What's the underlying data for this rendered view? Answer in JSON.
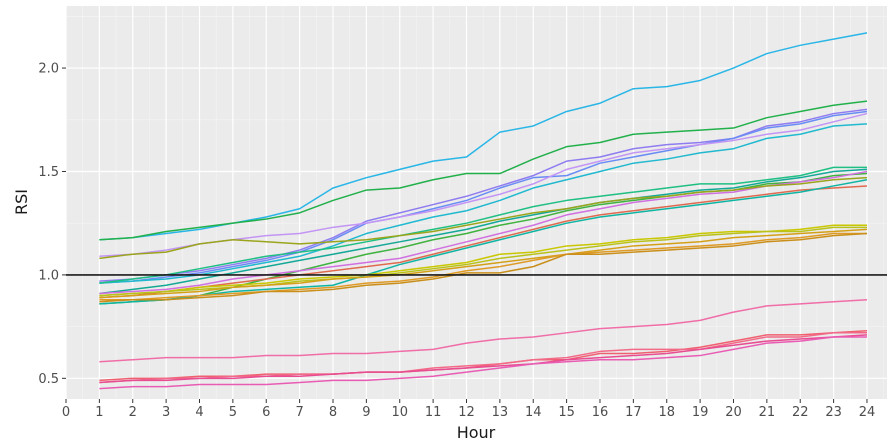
{
  "chart_data": {
    "type": "line",
    "xlabel": "Hour",
    "ylabel": "RSI",
    "xlim": [
      0,
      24.6
    ],
    "ylim": [
      0.4,
      2.3
    ],
    "x_ticks": [
      0,
      1,
      2,
      3,
      4,
      5,
      6,
      7,
      8,
      9,
      10,
      11,
      12,
      13,
      14,
      15,
      16,
      17,
      18,
      19,
      20,
      21,
      22,
      23,
      24
    ],
    "y_ticks": [
      0.5,
      1.0,
      1.5,
      2.0
    ],
    "y_tick_labels": [
      "0.5",
      "1.0",
      "1.5",
      "2.0"
    ],
    "grid": true,
    "legend": "none",
    "reference_line": {
      "y": 1.0,
      "color": "#1a1a1a"
    },
    "x": [
      1,
      2,
      3,
      4,
      5,
      6,
      7,
      8,
      9,
      10,
      11,
      12,
      13,
      14,
      15,
      16,
      17,
      18,
      19,
      20,
      21,
      22,
      23,
      24
    ],
    "series": [
      {
        "color": "#29b6e6",
        "values": [
          1.17,
          1.18,
          1.2,
          1.22,
          1.25,
          1.28,
          1.32,
          1.42,
          1.47,
          1.51,
          1.55,
          1.57,
          1.69,
          1.72,
          1.79,
          1.83,
          1.9,
          1.91,
          1.94,
          2.0,
          2.07,
          2.11,
          2.14,
          2.17
        ]
      },
      {
        "color": "#22b04b",
        "values": [
          1.17,
          1.18,
          1.21,
          1.23,
          1.25,
          1.27,
          1.3,
          1.36,
          1.41,
          1.42,
          1.46,
          1.49,
          1.49,
          1.56,
          1.62,
          1.64,
          1.68,
          1.69,
          1.7,
          1.71,
          1.76,
          1.79,
          1.82,
          1.84
        ]
      },
      {
        "color": "#8e7cf0",
        "values": [
          0.97,
          0.98,
          1.0,
          1.02,
          1.05,
          1.08,
          1.12,
          1.18,
          1.26,
          1.3,
          1.34,
          1.38,
          1.43,
          1.48,
          1.55,
          1.57,
          1.61,
          1.63,
          1.64,
          1.66,
          1.72,
          1.74,
          1.78,
          1.8
        ]
      },
      {
        "color": "#6a8cf5",
        "values": [
          0.96,
          0.97,
          0.99,
          1.01,
          1.04,
          1.07,
          1.11,
          1.17,
          1.25,
          1.28,
          1.32,
          1.36,
          1.42,
          1.47,
          1.48,
          1.54,
          1.57,
          1.6,
          1.63,
          1.66,
          1.71,
          1.73,
          1.77,
          1.79
        ]
      },
      {
        "color": "#20b9cf",
        "values": [
          0.96,
          0.97,
          0.98,
          1.0,
          1.03,
          1.06,
          1.09,
          1.14,
          1.2,
          1.24,
          1.28,
          1.31,
          1.36,
          1.42,
          1.46,
          1.5,
          1.54,
          1.56,
          1.59,
          1.61,
          1.66,
          1.68,
          1.72,
          1.73
        ]
      },
      {
        "color": "#c395f5",
        "values": [
          1.09,
          1.1,
          1.12,
          1.15,
          1.17,
          1.19,
          1.2,
          1.23,
          1.25,
          1.28,
          1.31,
          1.35,
          1.39,
          1.44,
          1.51,
          1.55,
          1.59,
          1.61,
          1.63,
          1.65,
          1.68,
          1.7,
          1.74,
          1.78
        ]
      },
      {
        "color": "#1fbf83",
        "values": [
          0.96,
          0.98,
          1.0,
          1.03,
          1.06,
          1.09,
          1.11,
          1.13,
          1.16,
          1.19,
          1.22,
          1.25,
          1.29,
          1.33,
          1.36,
          1.38,
          1.4,
          1.42,
          1.44,
          1.44,
          1.46,
          1.48,
          1.52,
          1.52
        ]
      },
      {
        "color": "#14a896",
        "values": [
          0.91,
          0.93,
          0.95,
          0.98,
          1.01,
          1.04,
          1.07,
          1.1,
          1.13,
          1.16,
          1.19,
          1.22,
          1.26,
          1.29,
          1.32,
          1.35,
          1.37,
          1.39,
          1.41,
          1.42,
          1.45,
          1.47,
          1.5,
          1.51
        ]
      },
      {
        "color": "#3fb23f",
        "values": [
          0.86,
          0.87,
          0.88,
          0.9,
          0.94,
          0.98,
          1.02,
          1.06,
          1.1,
          1.13,
          1.17,
          1.2,
          1.24,
          1.27,
          1.31,
          1.34,
          1.36,
          1.38,
          1.4,
          1.41,
          1.44,
          1.45,
          1.48,
          1.49
        ]
      },
      {
        "color": "#d170e0",
        "values": [
          0.91,
          0.92,
          0.93,
          0.95,
          0.98,
          1.0,
          1.02,
          1.04,
          1.06,
          1.08,
          1.12,
          1.16,
          1.2,
          1.24,
          1.29,
          1.32,
          1.35,
          1.37,
          1.39,
          1.4,
          1.43,
          1.45,
          1.47,
          1.5
        ]
      },
      {
        "color": "#9aa51c",
        "values": [
          1.08,
          1.1,
          1.11,
          1.15,
          1.17,
          1.16,
          1.15,
          1.16,
          1.17,
          1.19,
          1.21,
          1.24,
          1.27,
          1.3,
          1.32,
          1.35,
          1.37,
          1.38,
          1.4,
          1.41,
          1.43,
          1.44,
          1.46,
          1.47
        ]
      },
      {
        "color": "#e06a4f",
        "values": [
          0.89,
          0.9,
          0.92,
          0.94,
          0.96,
          0.98,
          1.0,
          1.02,
          1.04,
          1.06,
          1.1,
          1.14,
          1.18,
          1.22,
          1.26,
          1.29,
          1.31,
          1.33,
          1.35,
          1.37,
          1.39,
          1.41,
          1.42,
          1.43
        ]
      },
      {
        "color": "#0fb5a4",
        "values": [
          0.86,
          0.87,
          0.88,
          0.9,
          0.92,
          0.93,
          0.94,
          0.95,
          1.0,
          1.05,
          1.09,
          1.13,
          1.17,
          1.21,
          1.25,
          1.28,
          1.3,
          1.32,
          1.34,
          1.36,
          1.38,
          1.4,
          1.43,
          1.46
        ]
      },
      {
        "color": "#c9c700",
        "values": [
          0.9,
          0.91,
          0.92,
          0.94,
          0.95,
          0.96,
          0.98,
          0.99,
          1.0,
          1.02,
          1.04,
          1.06,
          1.1,
          1.11,
          1.14,
          1.15,
          1.17,
          1.18,
          1.2,
          1.21,
          1.21,
          1.22,
          1.24,
          1.24
        ]
      },
      {
        "color": "#b9c21a",
        "values": [
          0.9,
          0.91,
          0.92,
          0.93,
          0.94,
          0.95,
          0.97,
          0.98,
          0.99,
          1.01,
          1.03,
          1.05,
          1.08,
          1.1,
          1.12,
          1.14,
          1.16,
          1.17,
          1.19,
          1.2,
          1.21,
          1.21,
          1.23,
          1.23
        ]
      },
      {
        "color": "#d4a017",
        "values": [
          0.89,
          0.9,
          0.91,
          0.92,
          0.94,
          0.95,
          0.96,
          0.98,
          0.99,
          1.0,
          1.02,
          1.04,
          1.06,
          1.08,
          1.1,
          1.12,
          1.14,
          1.15,
          1.16,
          1.18,
          1.19,
          1.2,
          1.21,
          1.22
        ]
      },
      {
        "color": "#df9a26",
        "values": [
          0.88,
          0.88,
          0.89,
          0.9,
          0.91,
          0.92,
          0.93,
          0.94,
          0.96,
          0.97,
          0.99,
          1.02,
          1.04,
          1.07,
          1.1,
          1.11,
          1.12,
          1.13,
          1.14,
          1.15,
          1.17,
          1.18,
          1.2,
          1.2
        ]
      },
      {
        "color": "#c98f1a",
        "values": [
          0.87,
          0.88,
          0.88,
          0.89,
          0.9,
          0.92,
          0.92,
          0.93,
          0.95,
          0.96,
          0.98,
          1.01,
          1.01,
          1.04,
          1.1,
          1.1,
          1.11,
          1.12,
          1.13,
          1.14,
          1.16,
          1.17,
          1.19,
          1.2
        ]
      },
      {
        "color": "#f06da8",
        "values": [
          0.58,
          0.59,
          0.6,
          0.6,
          0.6,
          0.61,
          0.61,
          0.62,
          0.62,
          0.63,
          0.64,
          0.67,
          0.69,
          0.7,
          0.72,
          0.74,
          0.75,
          0.76,
          0.78,
          0.82,
          0.85,
          0.86,
          0.87,
          0.88
        ]
      },
      {
        "color": "#ef5f6f",
        "values": [
          0.49,
          0.5,
          0.5,
          0.51,
          0.51,
          0.52,
          0.52,
          0.52,
          0.53,
          0.53,
          0.54,
          0.55,
          0.57,
          0.59,
          0.59,
          0.62,
          0.62,
          0.63,
          0.65,
          0.68,
          0.71,
          0.71,
          0.72,
          0.73
        ]
      },
      {
        "color": "#f26a88",
        "values": [
          0.48,
          0.49,
          0.5,
          0.5,
          0.51,
          0.51,
          0.52,
          0.52,
          0.53,
          0.53,
          0.55,
          0.56,
          0.57,
          0.59,
          0.6,
          0.63,
          0.64,
          0.64,
          0.64,
          0.67,
          0.7,
          0.7,
          0.72,
          0.72
        ]
      },
      {
        "color": "#e84c91",
        "values": [
          0.48,
          0.49,
          0.49,
          0.5,
          0.5,
          0.51,
          0.51,
          0.52,
          0.53,
          0.53,
          0.54,
          0.55,
          0.56,
          0.57,
          0.59,
          0.6,
          0.61,
          0.62,
          0.64,
          0.66,
          0.68,
          0.69,
          0.7,
          0.71
        ]
      },
      {
        "color": "#e95cb4",
        "values": [
          0.45,
          0.46,
          0.46,
          0.47,
          0.47,
          0.47,
          0.48,
          0.49,
          0.49,
          0.5,
          0.51,
          0.53,
          0.55,
          0.57,
          0.58,
          0.59,
          0.59,
          0.6,
          0.61,
          0.64,
          0.67,
          0.68,
          0.7,
          0.7
        ]
      }
    ]
  }
}
